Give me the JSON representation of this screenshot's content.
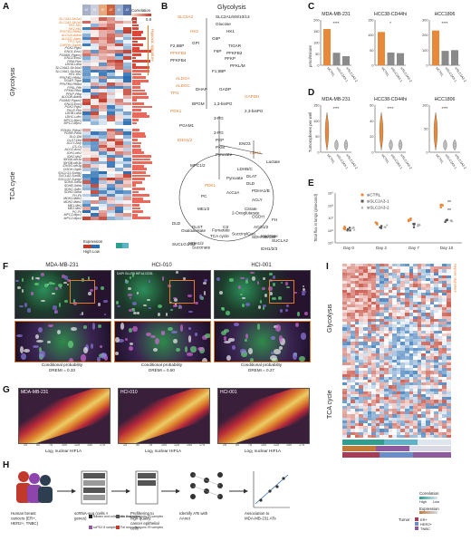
{
  "panels": {
    "A": "A",
    "B": "B",
    "C": "C",
    "D": "D",
    "E": "E",
    "F": "F",
    "G": "G",
    "H": "H",
    "I": "I"
  },
  "panelA": {
    "col_headers": [
      "AT MA",
      "AT MB",
      "AT ME",
      "AT MF",
      "AT ME",
      "AT MB"
    ],
    "correlation_label": "Correlation",
    "correlation_ticks": [
      "0.4",
      "0.8"
    ],
    "hypoxic_label": "Hypoxic signature",
    "section_glycolysis": "Glycolysis",
    "section_tca": "TCA cycle",
    "expression_label": "Expression",
    "expression_ticks": [
      "High",
      "Low"
    ],
    "glycolysis_genes": [
      "SLC2A1-Slc2a1",
      "SLC2A3-Slc2a3",
      "HK1-Hk1",
      "HK2-Hk2",
      "PFKFB3-Pfkfb3",
      "ALDOA-Aldoa",
      "ALDOC-Aldoc",
      "TPI1-Tpi1",
      "GAPDH-Gapdh",
      "PGK1-Pgk1",
      "ENO1-Eno1",
      "PGAM1-Pgam1",
      "ENO2-Eno2",
      "PKM-Pkm",
      "LDHA-Ldha",
      "SLC16A3-Slc16a3",
      "SLC16A1-Slc16a1",
      "HK1-Hk1",
      "PFKFB2-Pfkfb2",
      "TIGAR-Tigar",
      "PFKFB4-Pfkfb4",
      "PFKL-Pfkl",
      "PFKM-Pfkm",
      "PFKP-Pfkp",
      "ALDOB-Aldob",
      "PGAM2-Pgam2",
      "ENO3-Eno3",
      "PGK2-Pgk2",
      "PKLR-Pklr",
      "LDHB-Ldhb",
      "LDHC-Ldhc",
      "MPC1-Mpc1",
      "MPC2-Mpc2"
    ],
    "tca_genes": [
      "PDHA1-Pdha1",
      "PDHB-Pdhb",
      "DLD-Dld",
      "DLST-Dlst",
      "ACLY-Acly",
      "CS-Cs",
      "ACO2-Aco2",
      "IDH1-Idh1",
      "IDH2-Idh2",
      "IDH3A-Idh3a",
      "IDH3B-Idh3b",
      "IDH3G-Idh3g",
      "OGDH-Ogdh",
      "SUCLG1-Suclg1",
      "SUCLA2-Sucla2",
      "SUCLG2-Suclg2",
      "SDHA-Sdha",
      "SDHB-Sdhb",
      "SDHC-Sdhc",
      "SDHD-Sdhd",
      "FH-Fh",
      "MDH1-Mdh1",
      "MDH2-Mdh2",
      "ME1-Me1",
      "ME2-Me2",
      "PC-Pc",
      "MPC1-Mpc1",
      "MPC2-Mpc2"
    ]
  },
  "panelB": {
    "title": "Glycolysis",
    "nodes": [
      "SLC2A3",
      "SLC2A1/6/8/10/13",
      "Glucose",
      "HK2",
      "HK1",
      "G6P",
      "GPI",
      "F2,6BP",
      "PFKFB3",
      "F6P",
      "TIGAR",
      "PFKFB2",
      "PFKP",
      "PFKFB4",
      "PFKL/M",
      "F1,6BP",
      "ALDOA",
      "ALDOC",
      "TPI1",
      "DHAP",
      "GADP",
      "GAPDH",
      "BPGM",
      "1,3-bisPG",
      "PGK1",
      "2,3-bisPG",
      "3-PG",
      "PGAM1",
      "2-PG",
      "ENO1/2",
      "PEP",
      "PKM",
      "ENO3",
      "Pyruvate",
      "LDHA",
      "Lactate",
      "MPC1/2",
      "LDHB/C",
      "Pyruvate",
      "DLAT",
      "PDK1",
      "DLD",
      "PDHA1/B",
      "AcCoA",
      "ACLY",
      "PC",
      "ME1/2",
      "Citrate",
      "CS",
      "ACO1/2",
      "Oxaloacetate",
      "Isocitrate",
      "MDH1/2",
      "TCA cycle",
      "IDH1/2/3",
      "Malate",
      "IDH3A/B/G",
      "2-Oxoglutarate",
      "OGDH",
      "FH",
      "DLD",
      "DLST",
      "Fumarate",
      "SuccinylCoA",
      "SDHA/B/C/D",
      "SUCLA2",
      "SUCLG1/G2",
      "Succinate"
    ]
  },
  "panelC": {
    "titles": [
      "MDA-MB-231",
      "HCC38-CD44hi",
      "HCC1806"
    ],
    "ylabel": "pmol/minute",
    "yticks": [
      [
        "0",
        "50",
        "100",
        "150",
        "200"
      ],
      [
        "0",
        "50",
        "100",
        "150"
      ],
      [
        "0",
        "100",
        "200",
        "300"
      ]
    ],
    "sig": [
      "****",
      "****",
      "*",
      "****",
      "****",
      "****",
      "****"
    ],
    "xlabels": [
      "siCTRL",
      "siSLC2A3-1",
      "siSLC2A3-2"
    ],
    "chart_data": [
      {
        "type": "bar",
        "title": "MDA-MB-231",
        "categories": [
          "siCTRL",
          "siSLC2A3-1",
          "siSLC2A3-2"
        ],
        "values": [
          160,
          55,
          40
        ],
        "ylim": [
          0,
          200
        ]
      },
      {
        "type": "bar",
        "title": "HCC38-CD44hi",
        "categories": [
          "siCTRL",
          "siSLC2A3-1",
          "siSLC2A3-2"
        ],
        "values": [
          110,
          42,
          40
        ],
        "ylim": [
          0,
          150
        ]
      },
      {
        "type": "bar",
        "title": "HCC1806",
        "categories": [
          "siCTRL",
          "siSLC2A3-1",
          "siSLC2A3-2"
        ],
        "values": [
          230,
          95,
          100
        ],
        "ylim": [
          0,
          300
        ]
      }
    ]
  },
  "panelD": {
    "titles": [
      "MDA-MB-231",
      "HCC38-CD44hi",
      "HCC1806"
    ],
    "ylabel": "Tumorspheres per well",
    "yticks": [
      [
        "0",
        "50",
        "100",
        "150"
      ],
      [
        "0",
        "20",
        "40",
        "60"
      ],
      [
        "0",
        "50",
        "100"
      ]
    ],
    "sig": [
      "****",
      "****",
      "****",
      "****",
      "****"
    ],
    "xlabels": [
      "siCTRL",
      "siSLC2A3-1",
      "siSLC2A3-2"
    ]
  },
  "panelE": {
    "legend": [
      "siCTRL",
      "siSLC2A3-1",
      "siSLC2A3-2"
    ],
    "ylabel": "Total flux in lungs (p/second)",
    "yticks": [
      "10⁵",
      "10⁶",
      "10⁷",
      "10⁸",
      "10⁹"
    ],
    "xticks": [
      "Day 0",
      "Day 2",
      "Day 7",
      "Day 10"
    ],
    "sig": [
      "**",
      "**"
    ],
    "chart_data": {
      "type": "scatter",
      "x": [
        "Day 0",
        "Day 2",
        "Day 7",
        "Day 10"
      ],
      "series": [
        {
          "name": "siCTRL",
          "values": [
            1500000.0,
            4000000.0,
            8000000.0,
            90000000.0
          ]
        },
        {
          "name": "siSLC2A3-1",
          "values": [
            1400000.0,
            2000000.0,
            2500000.0,
            6000000.0
          ]
        },
        {
          "name": "siSLC2A3-2",
          "values": [
            1300000.0,
            2000000.0,
            2400000.0,
            5000000.0
          ]
        }
      ]
    }
  },
  "panelF": {
    "titles": [
      "MDA-MB-231",
      "HCI-010",
      "HCI-001"
    ],
    "channel_caption": "DAPI GLUT3 HIF1A CD31",
    "cond_prob": [
      "Conditional probability\nDREMI = 0.33",
      "Conditional probability\nDREMI = 0.50",
      "Conditional probability\nDREMI = 0.27"
    ]
  },
  "panelG": {
    "titles": [
      "MDA-MB-231",
      "HCI-010",
      "HCI-001"
    ],
    "ylabel": "Log₂ GLUT3",
    "xlabel": "Log₂ nuclear HIF1A",
    "xticks": [
      "25",
      "50",
      "75",
      "100",
      "125",
      "150",
      "175"
    ]
  },
  "panelH": {
    "steps": [
      "Human breast cancers (ER+, HER2+, TNBC)",
      "scRNA-seq (cells × genes)",
      "Prefiltering to high-quality cancer epithelial cells",
      "Identify ATs with AAnet",
      "Association to MDA-MB-231 ATs"
    ],
    "legend_rows": [
      "Bassez and colleagues 8 samples",
      "Wu and colleagues 15 samples",
      "scPDX 8 samples",
      "Pal and colleagues 29 samples"
    ]
  },
  "panelI": {
    "section_glycolysis": "Glycolysis",
    "section_tca": "TCA cycle",
    "hypoxic_label": "Hypoxic signature",
    "legend": {
      "correlation": "Correlation",
      "expression": "Expression",
      "tumor": "Tumor",
      "high": "High",
      "low": "Low",
      "tumor_types": [
        "ER+",
        "HER2+",
        "TNBC"
      ]
    }
  },
  "colors": {
    "orange": "#E37A2A",
    "hi": "#C23A2A",
    "lo": "#2B6FB3",
    "bar": "#8a8a8a",
    "violin": "#E8893A",
    "tnbc": "#2e9e8f",
    "er": "#5fb3c9",
    "her2": "#8e5a9c"
  }
}
